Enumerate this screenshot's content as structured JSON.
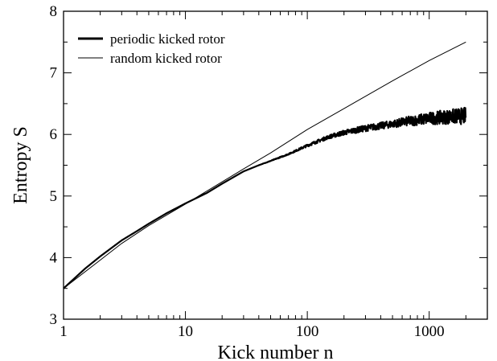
{
  "chart_data": {
    "type": "line",
    "title": "",
    "xlabel": "Kick number n",
    "ylabel": "Entropy S",
    "x_scale": "log",
    "xlim": [
      1,
      3000
    ],
    "ylim": [
      3,
      8
    ],
    "x_major_ticks": [
      1,
      10,
      100,
      1000
    ],
    "x_tick_labels": [
      "1",
      "10",
      "100",
      "1000"
    ],
    "y_major_ticks": [
      3,
      4,
      5,
      6,
      7,
      8
    ],
    "y_tick_labels": [
      "3",
      "4",
      "5",
      "6",
      "7",
      "8"
    ],
    "grid": false,
    "legend_position": "top-left",
    "series": [
      {
        "name": "periodic kicked rotor",
        "line_style": "thick",
        "color": "#000000",
        "x": [
          1,
          1.5,
          2,
          3,
          4,
          5,
          7,
          10,
          15,
          20,
          30,
          40,
          50,
          70,
          100,
          150,
          200,
          300,
          500,
          700,
          1000,
          1500,
          2000
        ],
        "y": [
          3.5,
          3.82,
          4.02,
          4.28,
          4.43,
          4.55,
          4.72,
          4.88,
          5.05,
          5.2,
          5.4,
          5.5,
          5.57,
          5.68,
          5.82,
          5.96,
          6.03,
          6.1,
          6.17,
          6.22,
          6.26,
          6.29,
          6.3
        ],
        "noise_amplitude": [
          0,
          0,
          0,
          0,
          0,
          0,
          0,
          0,
          0,
          0,
          0,
          0,
          0.005,
          0.01,
          0.02,
          0.03,
          0.04,
          0.05,
          0.06,
          0.08,
          0.1,
          0.12,
          0.14
        ]
      },
      {
        "name": "random kicked rotor",
        "line_style": "thin",
        "color": "#000000",
        "x": [
          1,
          2,
          3,
          5,
          10,
          20,
          30,
          50,
          100,
          200,
          500,
          1000,
          2000
        ],
        "y": [
          3.5,
          3.96,
          4.23,
          4.52,
          4.87,
          5.23,
          5.44,
          5.7,
          6.08,
          6.42,
          6.87,
          7.2,
          7.5
        ]
      }
    ]
  }
}
